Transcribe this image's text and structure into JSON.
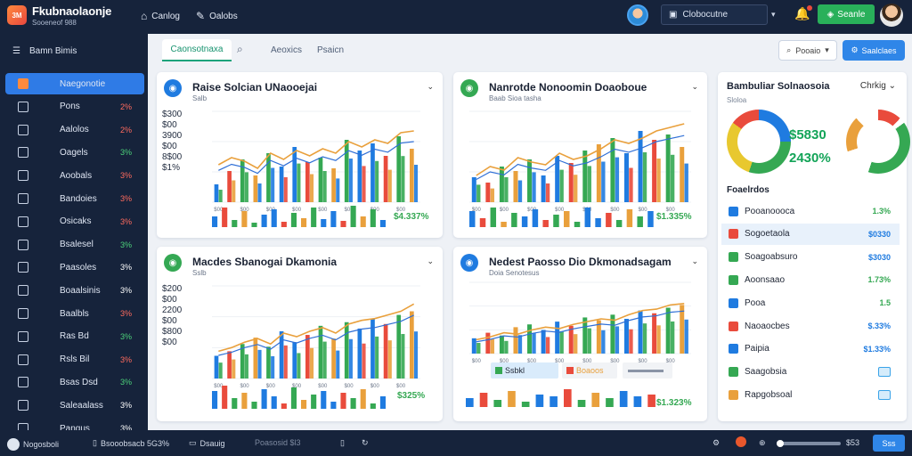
{
  "app": {
    "logo_text": "3M",
    "brand": "Fkubnaolaonje",
    "brand_sub": "Sooeneof 988"
  },
  "topnav": [
    {
      "label": "Canlog",
      "icon": "home-icon"
    },
    {
      "label": "Oalobs",
      "icon": "wrench-icon"
    }
  ],
  "toolbar": {
    "dropdown_label": "Clobocutne",
    "cta_label": "Seanle"
  },
  "sidebar": {
    "header": "Bamn Bimis",
    "items": [
      {
        "label": "Naegonotie",
        "value": "",
        "tone": "white",
        "active": true
      },
      {
        "label": "Pons",
        "value": "2%",
        "tone": "red"
      },
      {
        "label": "Aalolos",
        "value": "2%",
        "tone": "red"
      },
      {
        "label": "Oagels",
        "value": "3%",
        "tone": "green"
      },
      {
        "label": "Aoobals",
        "value": "3%",
        "tone": "red"
      },
      {
        "label": "Bandoies",
        "value": "3%",
        "tone": "red"
      },
      {
        "label": "Osicaks",
        "value": "3%",
        "tone": "red"
      },
      {
        "label": "Bsalesel",
        "value": "3%",
        "tone": "green"
      },
      {
        "label": "Paasoles",
        "value": "3%",
        "tone": "white"
      },
      {
        "label": "Boaalsinis",
        "value": "3%",
        "tone": "white"
      },
      {
        "label": "Baalbls",
        "value": "3%",
        "tone": "red"
      },
      {
        "label": "Ras Bd",
        "value": "3%",
        "tone": "green"
      },
      {
        "label": "Rsls Bil",
        "value": "3%",
        "tone": "red"
      },
      {
        "label": "Bsas Dsd",
        "value": "3%",
        "tone": "green"
      },
      {
        "label": "Saleaalass",
        "value": "3%",
        "tone": "white"
      },
      {
        "label": "Pangus",
        "value": "3%",
        "tone": "white"
      }
    ]
  },
  "tabs": {
    "active": "Caonsotnaxa",
    "items": [
      "Aeoxics",
      "Psaicn"
    ]
  },
  "filter": {
    "label": "Pooaio"
  },
  "primary_button": {
    "label": "Saalclaes"
  },
  "cards": [
    {
      "title": "Raise Solcian UNaooejai",
      "sub": "Salb",
      "stats": [
        "$300",
        "$00",
        "3900",
        "$00",
        "8$00",
        "$1%"
      ],
      "pct": "$4.337%",
      "icon_color": "#1f7be0"
    },
    {
      "title": "Nanrotde Nonoomin Doaoboue",
      "sub": "Baab Sioa tasha",
      "stats": [],
      "pct": "$1.335%",
      "icon_color": "#34a853"
    },
    {
      "title": "Macdes Sbanogai Dkamonia",
      "sub": "Sslb",
      "stats": [
        "$200",
        "$00",
        "2200",
        "$00",
        "$800",
        "$00"
      ],
      "pct": "$325%",
      "icon_color": "#34a853"
    },
    {
      "title": "Nedest Paosso Dio Dkmonadsagam",
      "sub": "Doia Senotesus",
      "stats": [],
      "pct": "$1.323%",
      "icon_color": "#1f7be0",
      "legend": [
        "Ssbkl",
        "Boaoos",
        ""
      ]
    }
  ],
  "chart_data": [
    {
      "type": "bar",
      "title": "Raise Solcian UNaooejai",
      "categories": [
        "$00",
        "$00",
        "$00",
        "$00",
        "$00",
        "$00",
        "$00",
        "$00",
        "$00",
        "$00",
        "$00",
        "$00",
        "$00",
        "$00",
        "$00",
        "$00"
      ],
      "series": [
        {
          "values": [
            20,
            35,
            48,
            30,
            55,
            40,
            62,
            45,
            50,
            38,
            70,
            58,
            66,
            52,
            74,
            60
          ]
        }
      ],
      "line": [
        42,
        50,
        46,
        38,
        55,
        48,
        58,
        52,
        60,
        55,
        68,
        62,
        70,
        66,
        78,
        80
      ],
      "mini": [
        12,
        22,
        8,
        18,
        5,
        14,
        20,
        6,
        16,
        10,
        22,
        9,
        18,
        7,
        24,
        12,
        20,
        8
      ]
    },
    {
      "type": "bar",
      "title": "Nanrotde Nonoomin Doaoboue",
      "categories": [
        "$00",
        "$00",
        "$00",
        "$00",
        "$00",
        "$00",
        "$00",
        "$00",
        "$00",
        "$00",
        "$00",
        "$00",
        "$00",
        "$00",
        "$00",
        "$00"
      ],
      "series": [
        {
          "values": [
            28,
            22,
            40,
            35,
            48,
            30,
            52,
            44,
            58,
            65,
            72,
            55,
            80,
            70,
            76,
            62
          ]
        }
      ],
      "line": [
        30,
        40,
        36,
        50,
        45,
        42,
        55,
        48,
        52,
        60,
        70,
        66,
        72,
        80,
        84,
        88
      ],
      "mini": [
        18,
        10,
        22,
        6,
        16,
        12,
        20,
        8,
        14,
        18,
        6,
        22,
        10,
        16,
        8,
        20,
        12,
        18
      ]
    },
    {
      "type": "bar",
      "title": "Macdes Sbanogai Dkamonia",
      "categories": [
        "$00",
        "$00",
        "$00",
        "$00",
        "$00",
        "$00",
        "$00",
        "$00",
        "$00",
        "$00",
        "$00",
        "$00",
        "$00",
        "$00",
        "$00",
        "$00"
      ],
      "series": [
        {
          "values": [
            25,
            30,
            38,
            45,
            35,
            52,
            40,
            48,
            58,
            44,
            62,
            55,
            66,
            60,
            70,
            74
          ]
        }
      ],
      "line": [
        30,
        34,
        40,
        44,
        38,
        50,
        46,
        52,
        56,
        50,
        60,
        64,
        66,
        70,
        74,
        82
      ],
      "mini": [
        20,
        26,
        12,
        18,
        8,
        22,
        14,
        6,
        24,
        10,
        16,
        20,
        8,
        18,
        12,
        22,
        6,
        14
      ]
    },
    {
      "type": "bar",
      "title": "Nedest Paosso Dio Dkmonadsagam",
      "categories": [
        "$00",
        "$00",
        "$00",
        "$00",
        "$00",
        "$00",
        "$00",
        "$00",
        "$00",
        "$00",
        "$00",
        "$00",
        "$00",
        "$00",
        "$00",
        "$00"
      ],
      "series": [
        {
          "values": [
            22,
            30,
            26,
            38,
            42,
            34,
            46,
            40,
            52,
            48,
            56,
            50,
            62,
            58,
            66,
            70
          ]
        }
      ],
      "line": [
        20,
        24,
        30,
        28,
        34,
        38,
        36,
        42,
        46,
        50,
        48,
        56,
        62,
        64,
        70,
        72
      ],
      "mini": [
        10,
        16,
        8,
        18,
        6,
        14,
        12,
        20,
        8,
        16,
        10,
        18,
        12,
        14
      ]
    }
  ],
  "right_panel": {
    "title": "Bambuliar Solnaosoia",
    "sub": "Sloloa",
    "dropdown": "Chrkig",
    "big_values": [
      "$5830",
      "2430%"
    ],
    "section": "Foaelrdos",
    "rows": [
      {
        "label": "Pooanoooca",
        "value": "1.3%",
        "color": "#1f7be0",
        "val_color": "#35a853"
      },
      {
        "label": "Sogoetaola",
        "value": "$0330",
        "color": "#e94b3c",
        "val_color": "#1f7be0",
        "hl": true
      },
      {
        "label": "Soagoabsuro",
        "value": "$3030",
        "color": "#35a853",
        "val_color": "#1f7be0"
      },
      {
        "label": "Aoonsaao",
        "value": "1.73%",
        "color": "#35a853",
        "val_color": "#35a853"
      },
      {
        "label": "Pooa",
        "value": "1.5",
        "color": "#1f7be0",
        "val_color": "#35a853"
      },
      {
        "label": "Naoaocbes",
        "value": "$.33%",
        "color": "#e94b3c",
        "val_color": "#1f7be0"
      },
      {
        "label": "Paipia",
        "value": "$1.33%",
        "color": "#1f7be0",
        "val_color": "#1f7be0"
      },
      {
        "label": "Saagobsia",
        "value": "",
        "color": "#35a853",
        "val_color": "#1f7be0"
      },
      {
        "label": "Rapgobsoal",
        "value": "",
        "color": "#e9a03c",
        "val_color": "#1f7be0"
      }
    ]
  },
  "statusbar": {
    "left": "Nogosboli",
    "mid1": "Bsooobsacb 5G3%",
    "mid2": "Dsauig",
    "mid3": "Poasosid $l3",
    "val": "$53",
    "btn": "Sss"
  }
}
